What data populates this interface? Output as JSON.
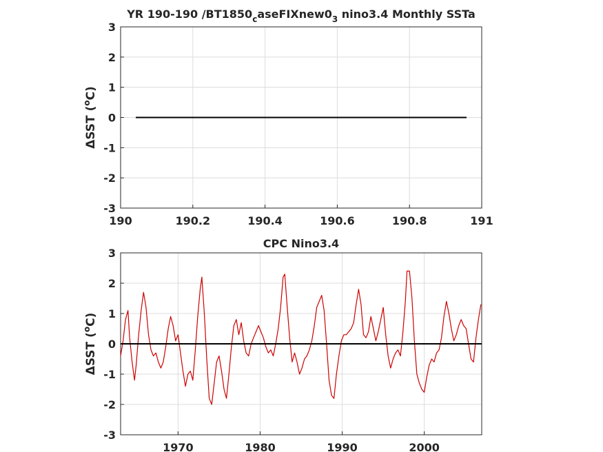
{
  "chart_data": [
    {
      "type": "line",
      "title": "YR 190-190 /BT1850_caseFIXnew0_3 nino3.4 Monthly SSTa",
      "title_parts": {
        "prefix": "YR 190-190 /BT1850",
        "sub1": "c",
        "middle": "aseFIXnew0",
        "sub2": "3",
        "suffix": " nino3.4 Monthly SSTa"
      },
      "ylabel": "ΔSST (oC)",
      "ylabel_parts": {
        "pre": "ΔSST (",
        "sup": "o",
        "post": "C)"
      },
      "xlim": [
        190,
        191
      ],
      "ylim": [
        -3,
        3
      ],
      "xticks": [
        "190",
        "190.2",
        "190.4",
        "190.6",
        "190.8",
        "191"
      ],
      "yticks": [
        "3",
        "2",
        "1",
        "0",
        "-1",
        "-2",
        "-3"
      ],
      "grid": true,
      "series": [
        {
          "color": "#000000",
          "x": [
            190.042,
            190.958
          ],
          "y": [
            0,
            0
          ]
        }
      ]
    },
    {
      "type": "line",
      "title": "CPC Nino3.4",
      "ylabel": "ΔSST (oC)",
      "ylabel_parts": {
        "pre": "ΔSST (",
        "sup": "o",
        "post": "C)"
      },
      "xlim": [
        1963,
        2007
      ],
      "ylim": [
        -3,
        3
      ],
      "xticks": [
        "1970",
        "1980",
        "1990",
        "2000"
      ],
      "yticks": [
        "3",
        "2",
        "1",
        "0",
        "-1",
        "-2",
        "-3"
      ],
      "grid": true,
      "zero_line": {
        "color": "#000000",
        "y": 0
      },
      "series": [
        {
          "color": "#cc0000",
          "x": [
            1963.0,
            1963.3,
            1963.6,
            1963.9,
            1964.1,
            1964.4,
            1964.7,
            1964.9,
            1965.2,
            1965.5,
            1965.8,
            1966.1,
            1966.4,
            1966.7,
            1967.0,
            1967.3,
            1967.6,
            1967.9,
            1968.2,
            1968.5,
            1968.8,
            1969.1,
            1969.4,
            1969.7,
            1970.0,
            1970.3,
            1970.6,
            1970.9,
            1971.2,
            1971.5,
            1971.8,
            1972.1,
            1972.4,
            1972.7,
            1972.9,
            1973.2,
            1973.5,
            1973.8,
            1974.1,
            1974.4,
            1974.7,
            1975.0,
            1975.3,
            1975.6,
            1975.9,
            1976.2,
            1976.5,
            1976.8,
            1977.1,
            1977.4,
            1977.7,
            1978.0,
            1978.3,
            1978.6,
            1978.9,
            1979.2,
            1979.5,
            1979.8,
            1980.1,
            1980.4,
            1980.7,
            1981.0,
            1981.3,
            1981.6,
            1981.9,
            1982.2,
            1982.5,
            1982.8,
            1983.0,
            1983.3,
            1983.6,
            1983.9,
            1984.2,
            1984.5,
            1984.8,
            1985.1,
            1985.4,
            1985.7,
            1986.0,
            1986.3,
            1986.6,
            1986.9,
            1987.2,
            1987.5,
            1987.8,
            1988.1,
            1988.4,
            1988.7,
            1989.0,
            1989.3,
            1989.6,
            1989.9,
            1990.2,
            1990.5,
            1990.8,
            1991.1,
            1991.4,
            1991.7,
            1992.0,
            1992.3,
            1992.6,
            1992.9,
            1993.2,
            1993.5,
            1993.8,
            1994.1,
            1994.4,
            1994.7,
            1995.0,
            1995.3,
            1995.6,
            1995.9,
            1996.2,
            1996.5,
            1996.8,
            1997.1,
            1997.4,
            1997.7,
            1997.9,
            1998.2,
            1998.5,
            1998.8,
            1999.1,
            1999.4,
            1999.7,
            2000.0,
            2000.3,
            2000.6,
            2000.9,
            2001.2,
            2001.5,
            2001.8,
            2002.1,
            2002.4,
            2002.7,
            2003.0,
            2003.3,
            2003.6,
            2003.9,
            2004.2,
            2004.5,
            2004.8,
            2005.1,
            2005.4,
            2005.7,
            2006.0,
            2006.3,
            2006.6,
            2006.9
          ],
          "y": [
            -0.4,
            0.1,
            0.8,
            1.1,
            0.2,
            -0.6,
            -1.2,
            -0.7,
            0.3,
            1.1,
            1.7,
            1.2,
            0.3,
            -0.2,
            -0.4,
            -0.3,
            -0.6,
            -0.8,
            -0.6,
            -0.1,
            0.5,
            0.9,
            0.6,
            0.1,
            0.3,
            -0.3,
            -0.9,
            -1.4,
            -1.0,
            -0.9,
            -1.2,
            -0.2,
            0.9,
            1.8,
            2.2,
            1.0,
            -0.5,
            -1.8,
            -2.0,
            -1.3,
            -0.6,
            -0.4,
            -0.9,
            -1.5,
            -1.8,
            -1.0,
            -0.1,
            0.6,
            0.8,
            0.3,
            0.7,
            0.1,
            -0.3,
            -0.4,
            0.0,
            0.2,
            0.4,
            0.6,
            0.4,
            0.2,
            -0.1,
            -0.3,
            -0.2,
            -0.4,
            0.0,
            0.5,
            1.2,
            2.2,
            2.3,
            1.2,
            0.2,
            -0.6,
            -0.3,
            -0.6,
            -1.0,
            -0.8,
            -0.5,
            -0.4,
            -0.2,
            0.1,
            0.6,
            1.2,
            1.4,
            1.6,
            1.1,
            0.0,
            -1.2,
            -1.7,
            -1.8,
            -1.0,
            -0.4,
            0.1,
            0.3,
            0.3,
            0.4,
            0.5,
            0.7,
            1.3,
            1.8,
            1.3,
            0.3,
            0.2,
            0.4,
            0.9,
            0.5,
            0.1,
            0.4,
            0.8,
            1.2,
            0.3,
            -0.4,
            -0.8,
            -0.5,
            -0.3,
            -0.2,
            -0.4,
            0.4,
            1.4,
            2.4,
            2.4,
            1.5,
            0.1,
            -1.0,
            -1.3,
            -1.5,
            -1.6,
            -1.1,
            -0.7,
            -0.5,
            -0.6,
            -0.3,
            -0.2,
            0.2,
            0.9,
            1.4,
            1.0,
            0.5,
            0.1,
            0.3,
            0.6,
            0.8,
            0.6,
            0.5,
            0.0,
            -0.5,
            -0.6,
            0.2,
            0.8,
            1.3
          ]
        }
      ]
    }
  ]
}
